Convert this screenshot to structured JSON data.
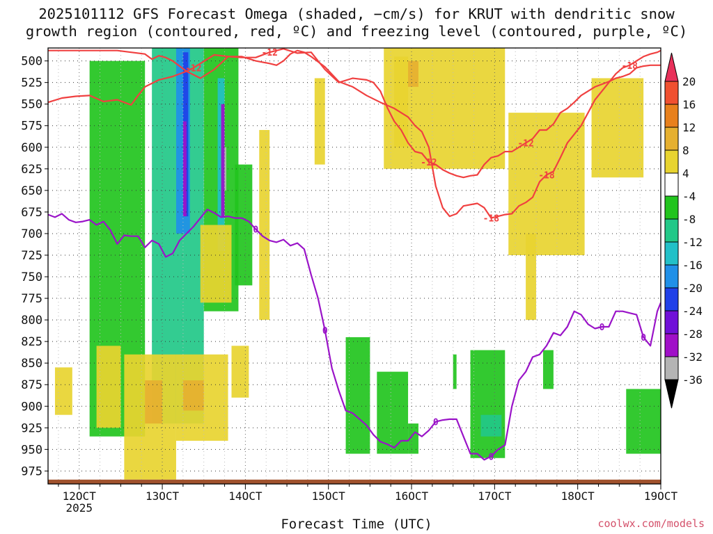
{
  "title_line1": "2025101112 GFS Forecast Omega (shaded, −cm/s) for KRUT with dendritic snow",
  "title_line2": "growth region (contoured, red, ºC) and freezing level (contoured, purple, ºC)",
  "brand": "coolwx.com/models",
  "chart_data": {
    "type": "heatmap",
    "title": "2025101112 GFS Forecast Omega (shaded, −cm/s) for KRUT with dendritic snow growth region (contoured, red, ºC) and freezing level (contoured, purple, ºC)",
    "xlabel": "Forecast Time (UTC)",
    "ylabel": "",
    "x_ticks": [
      "12OCT",
      "13OCT",
      "14OCT",
      "15OCT",
      "16OCT",
      "17OCT",
      "18OCT",
      "19OCT"
    ],
    "x_tick_hours": [
      12,
      36,
      60,
      84,
      108,
      132,
      156,
      180
    ],
    "x_sublabel": "2025",
    "xlim_hours": [
      3,
      180
    ],
    "y_ticks": [
      500,
      525,
      550,
      575,
      600,
      625,
      650,
      675,
      700,
      725,
      750,
      775,
      800,
      825,
      850,
      875,
      900,
      925,
      950,
      975
    ],
    "ylim_hPa": [
      485,
      990
    ],
    "colorbar": {
      "labels": [
        "20",
        "16",
        "12",
        "8",
        "4",
        "-4",
        "-8",
        "-12",
        "-16",
        "-20",
        "-24",
        "-28",
        "-32",
        "-36"
      ],
      "colors": [
        "#e8305a",
        "#f05030",
        "#e8801c",
        "#e6b030",
        "#e8d430",
        "#ffffff",
        "#22c41e",
        "#22c888",
        "#22c0c8",
        "#2090e8",
        "#2040e8",
        "#7010d8",
        "#a010c8",
        "#b4b4b4",
        "#000000"
      ]
    },
    "omega_regions": [
      {
        "x": [
          15,
          31
        ],
        "y": [
          500,
          935
        ],
        "value": -6
      },
      {
        "x": [
          33,
          48
        ],
        "y": [
          485,
          920
        ],
        "value": -8
      },
      {
        "x": [
          40,
          44
        ],
        "y": [
          485,
          700
        ],
        "value": -16
      },
      {
        "x": [
          42,
          43.5
        ],
        "y": [
          490,
          680
        ],
        "value": -20
      },
      {
        "x": [
          42,
          43
        ],
        "y": [
          570,
          680
        ],
        "value": -28
      },
      {
        "x": [
          48,
          58
        ],
        "y": [
          485,
          790
        ],
        "value": -6
      },
      {
        "x": [
          52,
          54
        ],
        "y": [
          520,
          720
        ],
        "value": -12
      },
      {
        "x": [
          53,
          54
        ],
        "y": [
          550,
          680
        ],
        "value": -28
      },
      {
        "x": [
          54,
          54.5
        ],
        "y": [
          600,
          650
        ],
        "value": -32
      },
      {
        "x": [
          57,
          62
        ],
        "y": [
          620,
          760
        ],
        "value": -6
      },
      {
        "x": [
          89,
          96
        ],
        "y": [
          820,
          955
        ],
        "value": -6
      },
      {
        "x": [
          98,
          107
        ],
        "y": [
          860,
          955
        ],
        "value": -6
      },
      {
        "x": [
          107,
          110
        ],
        "y": [
          920,
          955
        ],
        "value": -6
      },
      {
        "x": [
          120,
          121
        ],
        "y": [
          840,
          880
        ],
        "value": -6
      },
      {
        "x": [
          125,
          135
        ],
        "y": [
          835,
          960
        ],
        "value": -6
      },
      {
        "x": [
          128,
          134
        ],
        "y": [
          910,
          935
        ],
        "value": -10
      },
      {
        "x": [
          146,
          149
        ],
        "y": [
          835,
          880
        ],
        "value": -6
      },
      {
        "x": [
          170,
          180
        ],
        "y": [
          880,
          955
        ],
        "value": -6
      },
      {
        "x": [
          100,
          135
        ],
        "y": [
          485,
          625
        ],
        "value": 5
      },
      {
        "x": [
          103,
          107
        ],
        "y": [
          495,
          600
        ],
        "value": 6
      },
      {
        "x": [
          107,
          110
        ],
        "y": [
          500,
          530
        ],
        "value": 10
      },
      {
        "x": [
          136,
          158
        ],
        "y": [
          560,
          725
        ],
        "value": 5
      },
      {
        "x": [
          141,
          144
        ],
        "y": [
          700,
          800
        ],
        "value": 5
      },
      {
        "x": [
          160,
          175
        ],
        "y": [
          520,
          635
        ],
        "value": 5
      },
      {
        "x": [
          5,
          10
        ],
        "y": [
          855,
          910
        ],
        "value": 5
      },
      {
        "x": [
          17,
          24
        ],
        "y": [
          830,
          925
        ],
        "value": 5
      },
      {
        "x": [
          25,
          40
        ],
        "y": [
          840,
          985
        ],
        "value": 6
      },
      {
        "x": [
          31,
          36
        ],
        "y": [
          870,
          920
        ],
        "value": 9
      },
      {
        "x": [
          40,
          55
        ],
        "y": [
          840,
          940
        ],
        "value": 6
      },
      {
        "x": [
          42,
          48
        ],
        "y": [
          870,
          905
        ],
        "value": 9
      },
      {
        "x": [
          47,
          56
        ],
        "y": [
          690,
          780
        ],
        "value": 5
      },
      {
        "x": [
          56,
          61
        ],
        "y": [
          830,
          890
        ],
        "value": 5
      },
      {
        "x": [
          64,
          67
        ],
        "y": [
          580,
          800
        ],
        "value": 5
      },
      {
        "x": [
          80,
          83
        ],
        "y": [
          520,
          620
        ],
        "value": 5
      }
    ],
    "red_contour_minus12": {
      "label": "-12",
      "hours": [
        3,
        7,
        11,
        15,
        19,
        23,
        27,
        29,
        31,
        35,
        39,
        43,
        45,
        49,
        51,
        55,
        59,
        63,
        67,
        71,
        75,
        79,
        83,
        87,
        91,
        95,
        97,
        99,
        101,
        103,
        105,
        107,
        109,
        111,
        113,
        115,
        117,
        119,
        121,
        123,
        125,
        127,
        129,
        131,
        133,
        135,
        137,
        139,
        141,
        143,
        145,
        147,
        149,
        151,
        153,
        155,
        157,
        159,
        161,
        163,
        165,
        167,
        169,
        171,
        173,
        175,
        177,
        179,
        180
      ],
      "hPa": [
        548,
        543,
        541,
        540,
        547,
        545,
        551,
        540,
        530,
        522,
        518,
        512,
        508,
        498,
        493,
        495,
        496,
        496,
        490,
        486,
        491,
        490,
        510,
        525,
        520,
        522,
        525,
        535,
        554,
        570,
        580,
        595,
        605,
        607,
        617,
        620,
        626,
        630,
        633,
        635,
        633,
        632,
        620,
        612,
        610,
        605,
        605,
        600,
        595,
        590,
        580,
        580,
        573,
        560,
        555,
        548,
        540,
        535,
        530,
        527,
        524,
        520,
        518,
        515,
        508,
        506,
        505,
        505,
        505
      ]
    },
    "red_contour_minus18": {
      "label": "-18",
      "hours": [
        3,
        23,
        27,
        31,
        33,
        35,
        37,
        39,
        43,
        47,
        51,
        55,
        59,
        63,
        67,
        69,
        71,
        73,
        75,
        77,
        79,
        83,
        87,
        91,
        95,
        99,
        103,
        107,
        109,
        111,
        113,
        115,
        117,
        119,
        121,
        123,
        127,
        129,
        131,
        133,
        135,
        137,
        139,
        141,
        143,
        145,
        147,
        149,
        151,
        153,
        155,
        157,
        159,
        161,
        163,
        165,
        167,
        169,
        171,
        173,
        175,
        177,
        179,
        180
      ],
      "hPa": [
        488,
        488,
        490,
        492,
        498,
        494,
        496,
        500,
        512,
        520,
        510,
        495,
        495,
        500,
        503,
        505,
        500,
        492,
        488,
        490,
        495,
        507,
        524,
        530,
        540,
        548,
        555,
        565,
        575,
        582,
        600,
        645,
        670,
        680,
        677,
        668,
        665,
        670,
        682,
        680,
        678,
        677,
        668,
        664,
        658,
        640,
        632,
        628,
        612,
        595,
        585,
        575,
        560,
        545,
        535,
        525,
        515,
        508,
        505,
        500,
        495,
        492,
        490,
        488
      ]
    },
    "purple_contour_0": {
      "label": "0",
      "hours": [
        3,
        5,
        7,
        9,
        11,
        13,
        15,
        17,
        19,
        21,
        23,
        25,
        27,
        29,
        31,
        33,
        35,
        37,
        39,
        41,
        43,
        45,
        47,
        49,
        51,
        53,
        55,
        57,
        59,
        61,
        63,
        65,
        67,
        69,
        71,
        73,
        75,
        77,
        79,
        81,
        83,
        85,
        87,
        89,
        91,
        93,
        95,
        97,
        99,
        101,
        103,
        105,
        107,
        109,
        111,
        113,
        115,
        117,
        119,
        121,
        123,
        125,
        127,
        129,
        131,
        133,
        135,
        137,
        139,
        141,
        143,
        145,
        147,
        149,
        151,
        153,
        155,
        157,
        159,
        161,
        163,
        165,
        167,
        169,
        171,
        173,
        175,
        177,
        179,
        180
      ],
      "hPa": [
        678,
        681,
        677,
        684,
        687,
        686,
        684,
        690,
        686,
        696,
        712,
        702,
        703,
        703,
        716,
        708,
        712,
        727,
        723,
        708,
        700,
        692,
        682,
        672,
        676,
        681,
        680,
        682,
        682,
        686,
        695,
        703,
        708,
        710,
        707,
        714,
        711,
        718,
        748,
        775,
        812,
        856,
        882,
        905,
        908,
        915,
        922,
        933,
        941,
        944,
        948,
        940,
        940,
        930,
        935,
        928,
        918,
        916,
        915,
        915,
        935,
        955,
        955,
        962,
        958,
        950,
        945,
        900,
        870,
        860,
        843,
        840,
        830,
        815,
        818,
        808,
        790,
        794,
        805,
        810,
        808,
        808,
        790,
        790,
        792,
        794,
        820,
        830,
        790,
        780
      ]
    }
  }
}
